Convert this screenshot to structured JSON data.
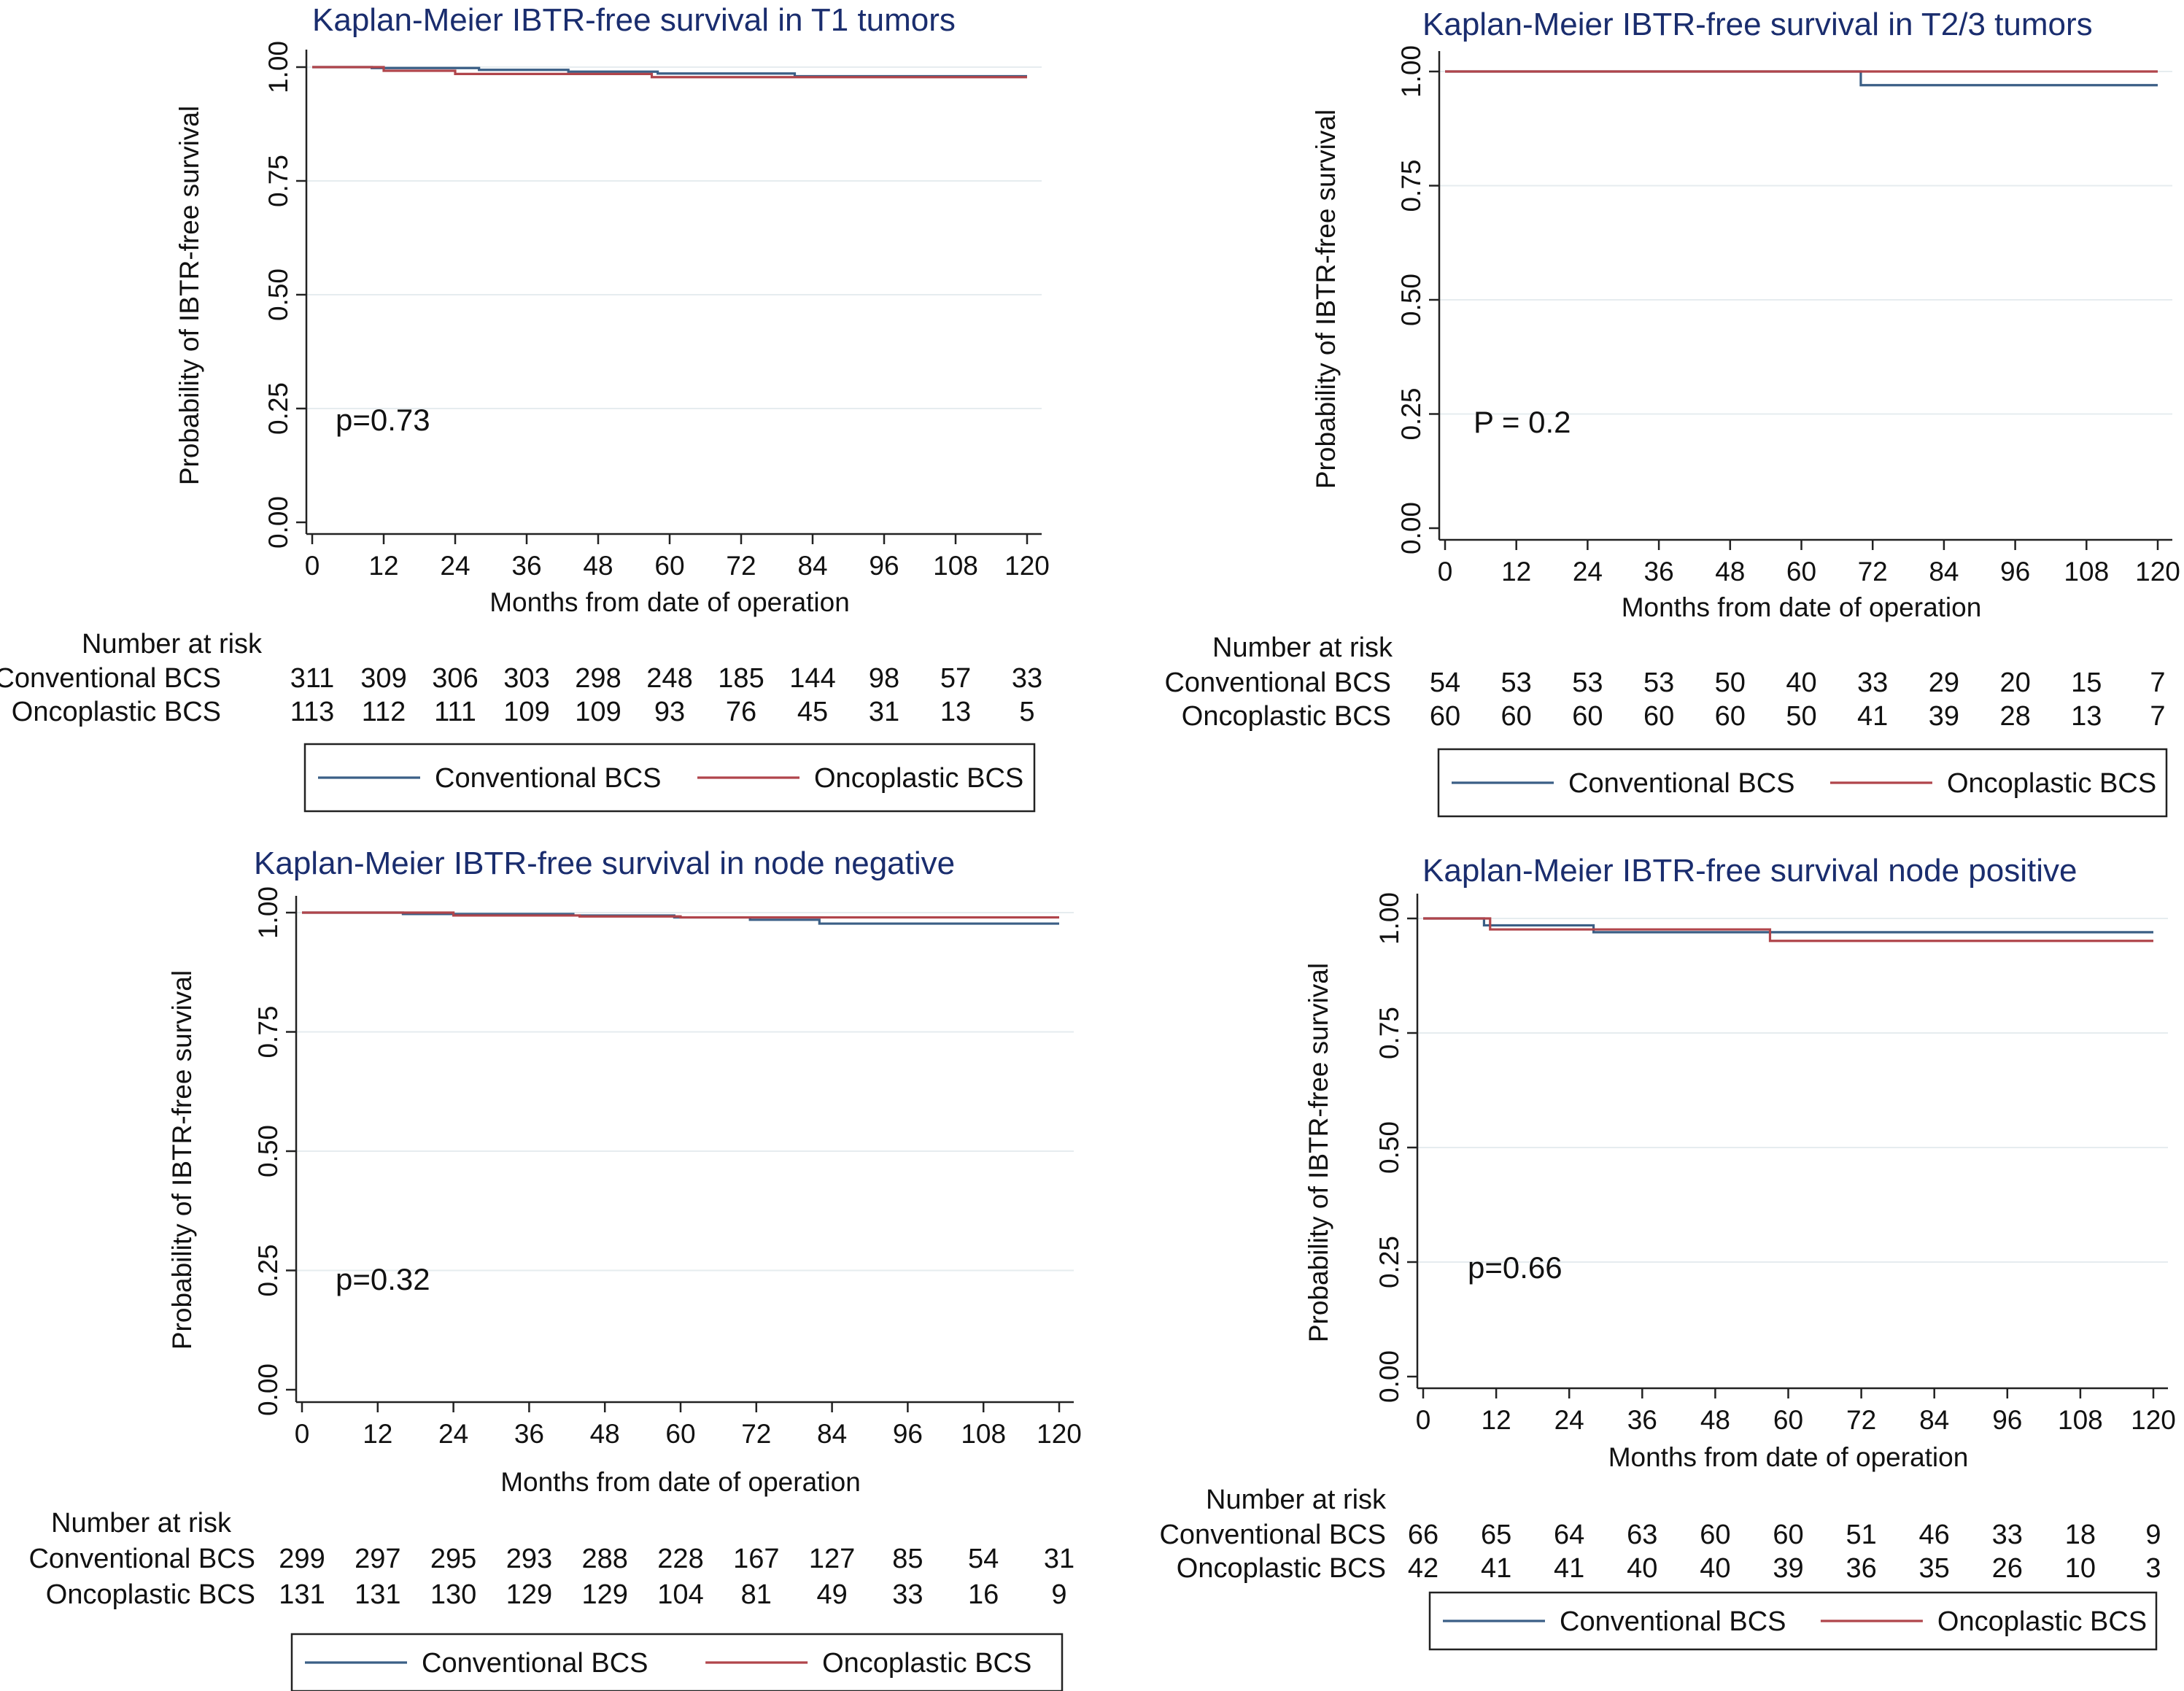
{
  "colors": {
    "conventional": "#3b5f86",
    "oncoplastic": "#b0454b",
    "grid": "#e6ecef",
    "axis": "#222222",
    "title": "#1a2d6e"
  },
  "chart_data": [
    {
      "type": "line",
      "title": "Kaplan-Meier IBTR-free survival in T1 tumors",
      "xlabel": "Months from date of operation",
      "ylabel": "Probability of IBTR-free survival",
      "xlim": [
        0,
        120
      ],
      "ylim": [
        0,
        1
      ],
      "xticks": [
        "0",
        "12",
        "24",
        "36",
        "48",
        "60",
        "72",
        "84",
        "96",
        "108",
        "120"
      ],
      "yticks": [
        "0.00",
        "0.25",
        "0.50",
        "0.75",
        "1.00"
      ],
      "pvalue": "p=0.73",
      "risk_header": "Number at risk",
      "series": [
        {
          "name": "Conventional BCS",
          "color_key": "conventional",
          "steps": [
            [
              0,
              1.0
            ],
            [
              10,
              0.998
            ],
            [
              28,
              0.994
            ],
            [
              43,
              0.99
            ],
            [
              58,
              0.986
            ],
            [
              81,
              0.98
            ],
            [
              120,
              0.98
            ]
          ],
          "risk_label": "Conventional BCS",
          "risk": [
            "311",
            "309",
            "306",
            "303",
            "298",
            "248",
            "185",
            "144",
            "98",
            "57",
            "33"
          ]
        },
        {
          "name": "Oncoplastic BCS",
          "color_key": "oncoplastic",
          "steps": [
            [
              0,
              1.0
            ],
            [
              12,
              0.992
            ],
            [
              24,
              0.985
            ],
            [
              57,
              0.978
            ],
            [
              120,
              0.978
            ]
          ],
          "risk_label": "Oncoplastic BCS",
          "risk": [
            "113",
            "112",
            "111",
            "109",
            "109",
            "93",
            "76",
            "45",
            "31",
            "13",
            "5"
          ]
        }
      ],
      "legend": [
        "Conventional BCS",
        "Oncoplastic BCS"
      ]
    },
    {
      "type": "line",
      "title": "Kaplan-Meier IBTR-free survival in T2/3 tumors",
      "xlabel": "Months from date of operation",
      "ylabel": "Probability of IBTR-free survival",
      "xlim": [
        0,
        120
      ],
      "ylim": [
        0,
        1
      ],
      "xticks": [
        "0",
        "12",
        "24",
        "36",
        "48",
        "60",
        "72",
        "84",
        "96",
        "108",
        "120"
      ],
      "yticks": [
        "0.00",
        "0.25",
        "0.50",
        "0.75",
        "1.00"
      ],
      "pvalue": "P = 0.2",
      "risk_header": "Number at risk",
      "series": [
        {
          "name": "Conventional BCS",
          "color_key": "conventional",
          "steps": [
            [
              0,
              1.0
            ],
            [
              70,
              0.97
            ],
            [
              120,
              0.97
            ]
          ],
          "risk_label": "Conventional BCS",
          "risk": [
            "54",
            "53",
            "53",
            "53",
            "50",
            "40",
            "33",
            "29",
            "20",
            "15",
            "7"
          ]
        },
        {
          "name": "Oncoplastic BCS",
          "color_key": "oncoplastic",
          "steps": [
            [
              0,
              1.0
            ],
            [
              120,
              1.0
            ]
          ],
          "risk_label": "Oncoplastic BCS",
          "risk": [
            "60",
            "60",
            "60",
            "60",
            "60",
            "50",
            "41",
            "39",
            "28",
            "13",
            "7"
          ]
        }
      ],
      "legend": [
        "Conventional BCS",
        "Oncoplastic BCS"
      ]
    },
    {
      "type": "line",
      "title": "Kaplan-Meier IBTR-free survival in node negative",
      "xlabel": "Months from date of operation",
      "ylabel": "Probability of IBTR-free survival",
      "xlim": [
        0,
        120
      ],
      "ylim": [
        0,
        1
      ],
      "xticks": [
        "0",
        "12",
        "24",
        "36",
        "48",
        "60",
        "72",
        "84",
        "96",
        "108",
        "120"
      ],
      "yticks": [
        "0.00",
        "0.25",
        "0.50",
        "0.75",
        "1.00"
      ],
      "pvalue": "p=0.32",
      "risk_header": "Number at risk",
      "series": [
        {
          "name": "Conventional BCS",
          "color_key": "conventional",
          "steps": [
            [
              0,
              1.0
            ],
            [
              16,
              0.997
            ],
            [
              43,
              0.994
            ],
            [
              59,
              0.99
            ],
            [
              71,
              0.985
            ],
            [
              82,
              0.977
            ],
            [
              120,
              0.977
            ]
          ],
          "risk_label": "Conventional BCS",
          "risk": [
            "299",
            "297",
            "295",
            "293",
            "288",
            "228",
            "167",
            "127",
            "85",
            "54",
            "31"
          ]
        },
        {
          "name": "Oncoplastic BCS",
          "color_key": "oncoplastic",
          "steps": [
            [
              0,
              1.0
            ],
            [
              24,
              0.994
            ],
            [
              44,
              0.992
            ],
            [
              60,
              0.99
            ],
            [
              120,
              0.99
            ]
          ],
          "risk_label": "Oncoplastic BCS",
          "risk": [
            "131",
            "131",
            "130",
            "129",
            "129",
            "104",
            "81",
            "49",
            "33",
            "16",
            "9"
          ]
        }
      ],
      "legend": [
        "Conventional BCS",
        "Oncoplastic BCS"
      ]
    },
    {
      "type": "line",
      "title": "Kaplan-Meier IBTR-free survival node positive",
      "xlabel": "Months from date of operation",
      "ylabel": "Probability of IBTR-free survival",
      "xlim": [
        0,
        120
      ],
      "ylim": [
        0,
        1
      ],
      "xticks": [
        "0",
        "12",
        "24",
        "36",
        "48",
        "60",
        "72",
        "84",
        "96",
        "108",
        "120"
      ],
      "yticks": [
        "0.00",
        "0.25",
        "0.50",
        "0.75",
        "1.00"
      ],
      "pvalue": "p=0.66",
      "risk_header": "Number at risk",
      "series": [
        {
          "name": "Conventional BCS",
          "color_key": "conventional",
          "steps": [
            [
              0,
              1.0
            ],
            [
              10,
              0.985
            ],
            [
              28,
              0.97
            ],
            [
              58,
              0.97
            ],
            [
              120,
              0.97
            ]
          ],
          "risk_label": "Conventional BCS",
          "risk": [
            "66",
            "65",
            "64",
            "63",
            "60",
            "60",
            "51",
            "46",
            "33",
            "18",
            "9"
          ]
        },
        {
          "name": "Oncoplastic BCS",
          "color_key": "oncoplastic",
          "steps": [
            [
              0,
              1.0
            ],
            [
              11,
              0.976
            ],
            [
              57,
              0.951
            ],
            [
              120,
              0.951
            ]
          ],
          "risk_label": "Oncoplastic BCS",
          "risk": [
            "42",
            "41",
            "41",
            "40",
            "40",
            "39",
            "36",
            "35",
            "26",
            "10",
            "3"
          ]
        }
      ],
      "legend": [
        "Conventional BCS",
        "Oncoplastic BCS"
      ]
    }
  ]
}
